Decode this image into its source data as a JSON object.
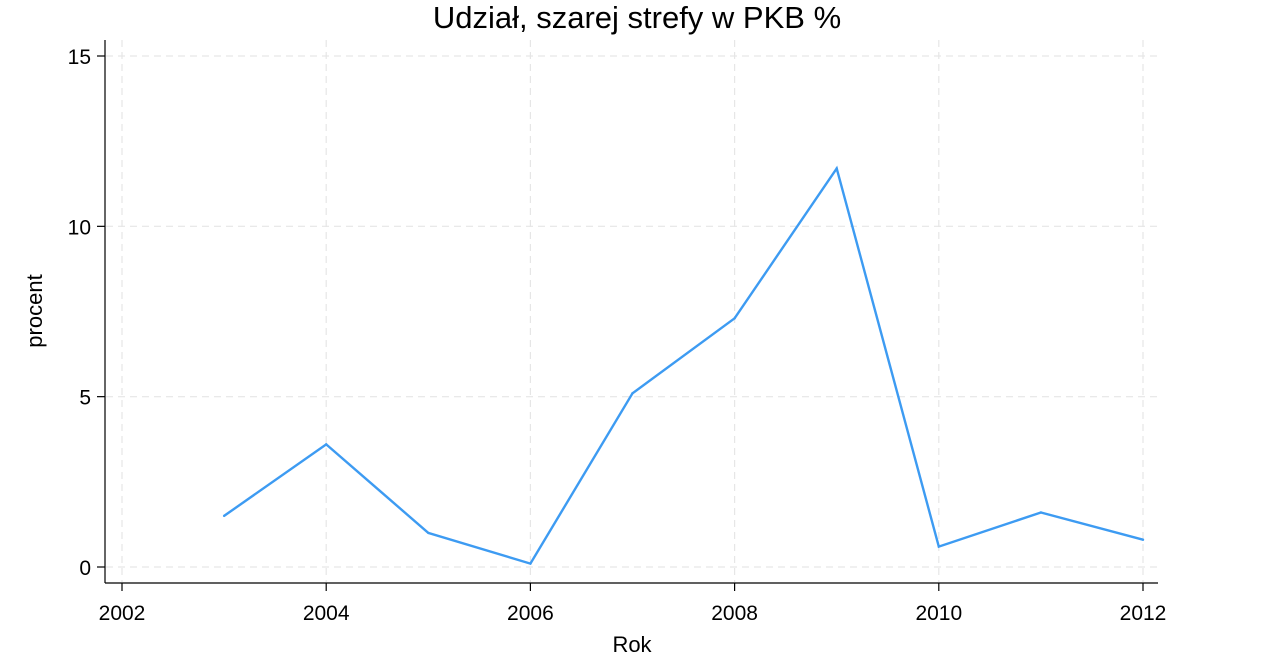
{
  "chart_data": {
    "type": "line",
    "title": "Udział, szarej strefy w PKB %",
    "xlabel": "Rok",
    "ylabel": "procent",
    "xlim": [
      2002,
      2012
    ],
    "ylim": [
      0,
      15
    ],
    "xticks": [
      2002,
      2004,
      2006,
      2008,
      2010,
      2012
    ],
    "yticks": [
      0,
      5,
      10,
      15
    ],
    "grid": true,
    "legend": "none",
    "series": [
      {
        "color": "#3d9bf2",
        "x": [
          2003,
          2004,
          2005,
          2006,
          2007,
          2008,
          2009,
          2010,
          2011,
          2012
        ],
        "y": [
          1.5,
          3.6,
          1.0,
          0.1,
          5.1,
          7.3,
          11.7,
          0.6,
          1.6,
          0.8
        ]
      }
    ]
  }
}
